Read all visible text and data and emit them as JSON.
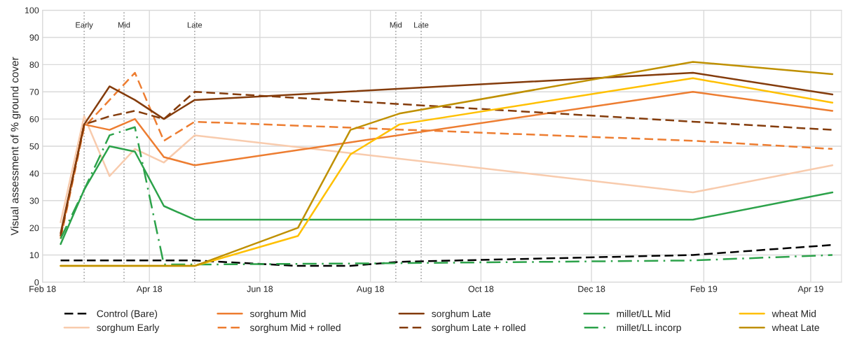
{
  "chart_data": {
    "type": "line",
    "ylabel": "Visual assessment of % ground cover",
    "xlim": [
      "2018-02-01",
      "2019-04-18"
    ],
    "xticks": [
      {
        "value": "2018-02-01",
        "label": "Feb 18"
      },
      {
        "value": "2018-04-01",
        "label": "Apr 18"
      },
      {
        "value": "2018-06-01",
        "label": "Jun 18"
      },
      {
        "value": "2018-08-01",
        "label": "Aug 18"
      },
      {
        "value": "2018-10-01",
        "label": "Oct 18"
      },
      {
        "value": "2018-12-01",
        "label": "Dec 18"
      },
      {
        "value": "2019-02-01",
        "label": "Feb 19"
      },
      {
        "value": "2019-04-01",
        "label": "Apr 19"
      }
    ],
    "ylim": [
      0,
      100
    ],
    "yticks": [
      0,
      10,
      20,
      30,
      40,
      50,
      60,
      70,
      80,
      90,
      100
    ],
    "grid": true,
    "legend": "bottom",
    "marker": "none",
    "ref_lines": [
      {
        "axis": "x",
        "value": "2018-02-24",
        "label": "Early",
        "color": "#a6a6a6",
        "line_style": "dotted"
      },
      {
        "axis": "x",
        "value": "2018-03-18",
        "label": "Mid",
        "color": "#a6a6a6",
        "line_style": "dotted"
      },
      {
        "axis": "x",
        "value": "2018-04-26",
        "label": "Late",
        "color": "#a6a6a6",
        "line_style": "dotted"
      },
      {
        "axis": "x",
        "value": "2018-08-15",
        "label": "Mid",
        "color": "#a6a6a6",
        "line_style": "dotted"
      },
      {
        "axis": "x",
        "value": "2018-08-29",
        "label": "Late",
        "color": "#a6a6a6",
        "line_style": "dotted"
      }
    ],
    "series": [
      {
        "name": "Control (Bare)",
        "color": "#000000",
        "line_style": "dashed",
        "x": [
          "2018-02-11",
          "2018-02-24",
          "2018-03-10",
          "2018-03-24",
          "2018-04-09",
          "2018-04-26",
          "2018-06-22",
          "2018-07-21",
          "2018-08-17",
          "2019-01-26",
          "2019-04-13"
        ],
        "values": [
          8,
          8,
          8,
          8,
          8,
          8,
          6,
          6,
          7.5,
          10,
          13.7
        ]
      },
      {
        "name": "sorghum Early",
        "color": "#f8cbad",
        "line_style": "solid",
        "x": [
          "2018-02-11",
          "2018-02-24",
          "2018-03-10",
          "2018-03-24",
          "2018-04-09",
          "2018-04-26",
          "2019-01-26",
          "2019-04-13"
        ],
        "values": [
          22,
          61,
          39,
          49,
          44,
          54,
          33,
          43
        ]
      },
      {
        "name": "sorghum Mid",
        "color": "#ed7d31",
        "line_style": "solid",
        "x": [
          "2018-02-11",
          "2018-02-24",
          "2018-03-10",
          "2018-03-24",
          "2018-04-09",
          "2018-04-26",
          "2019-01-26",
          "2019-04-13"
        ],
        "values": [
          17,
          58,
          56,
          60,
          46,
          43,
          70,
          63
        ]
      },
      {
        "name": "sorghum Mid + rolled",
        "color": "#ed7d31",
        "line_style": "dashed",
        "x": [
          "2018-02-11",
          "2018-02-24",
          "2018-03-24",
          "2018-04-09",
          "2018-04-26",
          "2019-01-26",
          "2019-04-13"
        ],
        "values": [
          16,
          57,
          77,
          52,
          59,
          52,
          49
        ]
      },
      {
        "name": "sorghum Late",
        "color": "#843c0c",
        "line_style": "solid",
        "x": [
          "2018-02-11",
          "2018-02-24",
          "2018-03-10",
          "2018-03-24",
          "2018-04-09",
          "2018-04-26",
          "2019-01-26",
          "2019-04-13"
        ],
        "values": [
          18,
          58,
          72,
          67,
          60,
          67,
          77,
          69
        ]
      },
      {
        "name": "sorghum Late + rolled",
        "color": "#843c0c",
        "line_style": "dashed",
        "x": [
          "2018-02-11",
          "2018-02-24",
          "2018-03-10",
          "2018-03-24",
          "2018-04-09",
          "2018-04-26",
          "2019-01-26",
          "2019-04-13"
        ],
        "values": [
          17,
          58,
          61,
          63,
          60,
          70,
          59,
          56
        ]
      },
      {
        "name": "millet/LL Mid",
        "color": "#2ca24a",
        "line_style": "solid",
        "x": [
          "2018-02-11",
          "2018-02-24",
          "2018-03-10",
          "2018-03-24",
          "2018-04-09",
          "2018-04-26",
          "2019-01-26",
          "2019-04-13"
        ],
        "values": [
          14,
          34,
          50,
          48,
          28,
          23,
          23,
          33
        ]
      },
      {
        "name": "millet/LL incorp",
        "color": "#2ca24a",
        "line_style": "dashdot",
        "x": [
          "2018-02-11",
          "2018-02-24",
          "2018-03-10",
          "2018-03-24",
          "2018-04-09",
          "2018-04-26",
          "2018-08-17",
          "2019-01-26",
          "2019-04-13"
        ],
        "values": [
          16,
          34,
          54,
          57,
          6.5,
          6.5,
          7,
          8,
          10
        ]
      },
      {
        "name": "wheat Mid",
        "color": "#ffc000",
        "line_style": "solid",
        "x": [
          "2018-02-11",
          "2018-04-26",
          "2018-06-22",
          "2018-07-21",
          "2018-08-17",
          "2019-01-26",
          "2019-04-13"
        ],
        "values": [
          6,
          6,
          17,
          47,
          58,
          75,
          66
        ]
      },
      {
        "name": "wheat Late",
        "color": "#bf9000",
        "line_style": "solid",
        "x": [
          "2018-02-11",
          "2018-04-26",
          "2018-06-22",
          "2018-07-21",
          "2018-08-17",
          "2019-01-26",
          "2019-04-13"
        ],
        "values": [
          6,
          6,
          20,
          56,
          62,
          81,
          76.5
        ]
      }
    ]
  }
}
